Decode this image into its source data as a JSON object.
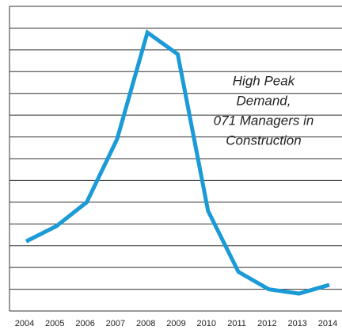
{
  "chart_data": {
    "type": "line",
    "categories": [
      "2004",
      "2005",
      "2006",
      "2007",
      "2008",
      "2009",
      "2010",
      "2011",
      "2012",
      "2013",
      "2014"
    ],
    "series": [
      {
        "color": "#1a9ad6",
        "values": [
          3.2,
          3.9,
          5.0,
          7.9,
          12.8,
          11.8,
          4.6,
          1.8,
          1.0,
          0.8,
          1.2
        ]
      }
    ],
    "ylim": [
      0,
      14
    ],
    "yticks": [
      0,
      1,
      2,
      3,
      4,
      5,
      6,
      7,
      8,
      9,
      10,
      11,
      12,
      13,
      14
    ],
    "grid": true,
    "annotation": [
      "High Peak",
      "Demand,",
      "071 Managers in",
      "Construction"
    ]
  }
}
